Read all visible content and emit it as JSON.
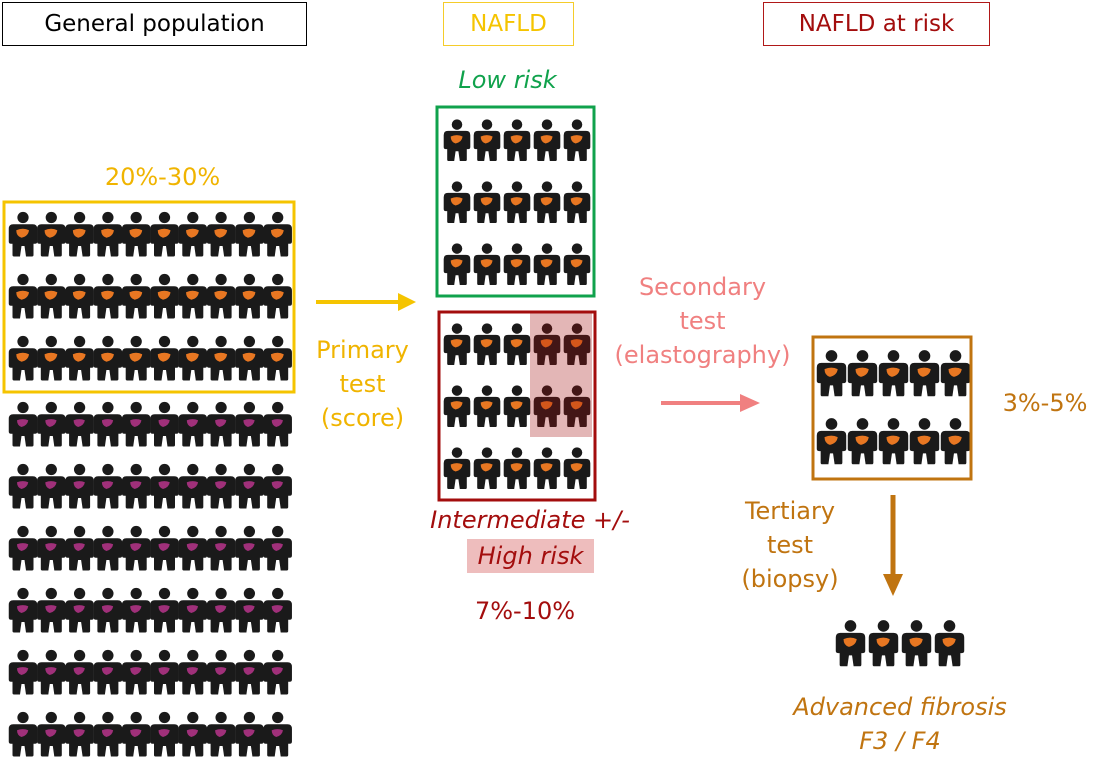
{
  "headers": {
    "general_population": "General population",
    "nafld": "NAFLD",
    "nafld_at_risk": "NAFLD at risk"
  },
  "groups": {
    "low_risk": "Low risk",
    "intermediate": "Intermediate +/-",
    "high_risk": "High risk",
    "advanced_fibrosis": [
      "Advanced fibrosis",
      "F3 / F4"
    ]
  },
  "percentages": {
    "nafld_prevalence": "20%-30%",
    "intermediate_high": "7%-10%",
    "at_risk": "3%-5%"
  },
  "tests": {
    "primary": [
      "Primary",
      "test",
      "(score)"
    ],
    "secondary": [
      "Secondary",
      "test",
      "(elastography)"
    ],
    "tertiary": [
      "Tertiary",
      "test",
      "(biopsy)"
    ]
  },
  "colors": {
    "nafld": "#f5c400",
    "low_risk": "#10a24c",
    "high_risk": "#a30d0d",
    "high_risk_fill": "#eebdbd",
    "secondary": "#f08080",
    "at_risk": "#c07410",
    "liver_orange": "#e87722",
    "liver_purple": "#a0307a",
    "figure": "#1a1a1a"
  }
}
